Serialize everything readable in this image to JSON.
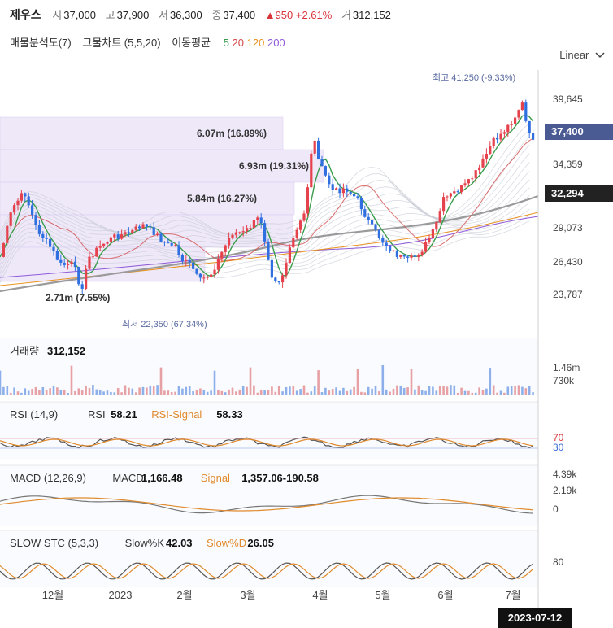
{
  "stock": {
    "name": "제우스",
    "open_label": "시",
    "open": "37,000",
    "high_label": "고",
    "high": "37,900",
    "low_label": "저",
    "low": "36,300",
    "close_label": "종",
    "close": "37,400",
    "change": "▲950 +2.61%",
    "volume_label": "거",
    "volume": "312,152"
  },
  "indicators_bar": {
    "profile": "매물분석도(7)",
    "bollinger": "그물차트 (5,5,20)",
    "ma_label": "이동평균",
    "ma5": "5",
    "ma20": "20",
    "ma120": "120",
    "ma200": "200"
  },
  "scale_mode": "Linear",
  "colors": {
    "up": "#e5424d",
    "down": "#2f6fe0",
    "ma5": "#3a9c4c",
    "ma20": "#d34a4a",
    "ma120": "#e89320",
    "ma200": "#8e5ad8",
    "accent": "#5a6aa0"
  },
  "chart_data": [
    {
      "type": "candlestick",
      "title": "",
      "x_ticks": [
        "12월",
        "2023",
        "2월",
        "3월",
        "4월",
        "5월",
        "6월",
        "7월"
      ],
      "y_ticks": [
        "39,645",
        "34,359",
        "29,073",
        "26,430",
        "23,787"
      ],
      "current_price_label": "37,400",
      "secondary_price_label": "32,294",
      "annotations": {
        "high": "최고 41,250 (-9.33%)",
        "low": "최저 22,350 (67.34%)"
      },
      "volume_profile": [
        {
          "label": "6.07m (16.89%)"
        },
        {
          "label": "6.93m (19.31%)"
        },
        {
          "label": "5.84m (16.27%)"
        },
        {
          "label": "2.71m (7.55%)"
        }
      ],
      "moving_averages": [
        "5",
        "20",
        "120",
        "200"
      ]
    },
    {
      "type": "bar",
      "title": "거래량",
      "value_label": "312,152",
      "y_ticks": [
        "1.46m",
        "730k"
      ]
    },
    {
      "type": "line",
      "title": "RSI (14,9)",
      "series": [
        {
          "name": "RSI",
          "value": "58.21"
        },
        {
          "name": "RSI-Signal",
          "value": "58.33"
        }
      ],
      "y_ticks": [
        "70",
        "30"
      ]
    },
    {
      "type": "line",
      "title": "MACD (12,26,9)",
      "series": [
        {
          "name": "MACD",
          "value": "1,166.48"
        },
        {
          "name": "Signal",
          "value": "1,357.06-190.58"
        }
      ],
      "y_ticks": [
        "4.39k",
        "2.19k",
        "0"
      ]
    },
    {
      "type": "line",
      "title": "SLOW STC (5,3,3)",
      "series": [
        {
          "name": "Slow%K",
          "value": "42.03"
        },
        {
          "name": "Slow%D",
          "value": "26.05"
        }
      ],
      "y_ticks": [
        "80"
      ]
    }
  ],
  "crosshair_date": "2023-07-12"
}
